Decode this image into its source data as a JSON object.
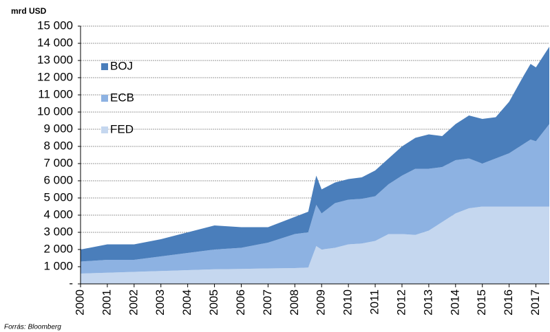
{
  "chart_data": {
    "type": "stacked_area",
    "y_label": "mrd USD",
    "source": "Forrás: Bloomberg",
    "x": [
      2000,
      2001,
      2002,
      2003,
      2004,
      2005,
      2006,
      2007,
      2008,
      2008.5,
      2008.8,
      2009,
      2009.5,
      2010,
      2010.5,
      2011,
      2011.5,
      2012,
      2012.5,
      2013,
      2013.5,
      2014,
      2014.5,
      2015,
      2015.5,
      2016,
      2016.5,
      2016.8,
      2017,
      2017.5
    ],
    "series": [
      {
        "name": "FED",
        "color": "#c5d7ef",
        "values": [
          600,
          650,
          700,
          750,
          800,
          850,
          870,
          900,
          920,
          950,
          2200,
          2000,
          2100,
          2300,
          2350,
          2500,
          2900,
          2900,
          2850,
          3100,
          3600,
          4100,
          4400,
          4500,
          4500,
          4500,
          4500,
          4500,
          4500,
          4500
        ]
      },
      {
        "name": "ECB",
        "color": "#8db2e2",
        "values": [
          700,
          750,
          700,
          850,
          1000,
          1150,
          1230,
          1500,
          1980,
          2050,
          2400,
          2100,
          2600,
          2600,
          2600,
          2600,
          2900,
          3400,
          3850,
          3600,
          3200,
          3100,
          2900,
          2500,
          2800,
          3100,
          3600,
          3900,
          3800,
          4800
        ]
      },
      {
        "name": "BOJ",
        "color": "#4a7ebb",
        "values": [
          700,
          900,
          900,
          1000,
          1200,
          1400,
          1200,
          900,
          1000,
          1200,
          1700,
          1400,
          1200,
          1200,
          1250,
          1500,
          1500,
          1700,
          1800,
          2000,
          1800,
          2100,
          2500,
          2600,
          2400,
          3000,
          3900,
          4400,
          4300,
          4500
        ]
      }
    ],
    "xlim": [
      2000,
      2017.5
    ],
    "xticks": [
      2000,
      2001,
      2002,
      2003,
      2004,
      2005,
      2006,
      2007,
      2008,
      2009,
      2010,
      2011,
      2012,
      2013,
      2014,
      2015,
      2016,
      2017
    ],
    "ylim": [
      0,
      15000
    ],
    "yticks": [
      {
        "value": 0,
        "label": "-"
      },
      {
        "value": 1000,
        "label": "1 000"
      },
      {
        "value": 2000,
        "label": "2 000"
      },
      {
        "value": 3000,
        "label": "3 000"
      },
      {
        "value": 4000,
        "label": "4 000"
      },
      {
        "value": 5000,
        "label": "5 000"
      },
      {
        "value": 6000,
        "label": "6 000"
      },
      {
        "value": 7000,
        "label": "7 000"
      },
      {
        "value": 8000,
        "label": "8 000"
      },
      {
        "value": 9000,
        "label": "9 000"
      },
      {
        "value": 10000,
        "label": "10 000"
      },
      {
        "value": 11000,
        "label": "11 000"
      },
      {
        "value": 12000,
        "label": "12 000"
      },
      {
        "value": 13000,
        "label": "13 000"
      },
      {
        "value": 14000,
        "label": "14 000"
      },
      {
        "value": 15000,
        "label": "15 000"
      }
    ],
    "grid": true
  }
}
